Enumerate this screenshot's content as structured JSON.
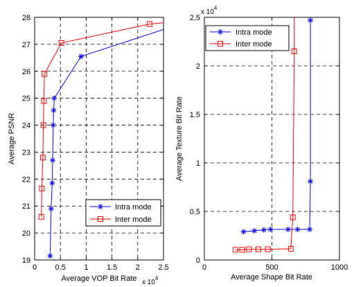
{
  "chart_data": [
    {
      "type": "line",
      "title": "",
      "xlabel": "Average VOP Bit Rate",
      "ylabel": "Average PSNR",
      "x_multiplier_label": "x 10",
      "x_multiplier_exp": "4",
      "xlim": [
        0,
        25000
      ],
      "ylim": [
        19,
        28
      ],
      "xticks": [
        0,
        5000,
        10000,
        15000,
        20000,
        25000
      ],
      "xtick_labels": [
        "0",
        "0.5",
        "1",
        "1.5",
        "2",
        "2.5"
      ],
      "yticks": [
        19,
        20,
        21,
        22,
        23,
        24,
        25,
        26,
        27,
        28
      ],
      "ytick_labels": [
        "19",
        "20",
        "21",
        "22",
        "23",
        "24",
        "25",
        "26",
        "27",
        "28"
      ],
      "grid": true,
      "legend": "bottom-right",
      "series": [
        {
          "name": "Intra mode",
          "marker": "star",
          "color": "#0000ff",
          "x": [
            3000,
            3200,
            3400,
            3500,
            3600,
            3700,
            3800,
            9000,
            25000
          ],
          "y": [
            19.15,
            20.9,
            21.85,
            22.7,
            24.0,
            24.55,
            25.0,
            26.55,
            27.55
          ]
        },
        {
          "name": "Inter mode",
          "marker": "square",
          "color": "#ff0000",
          "x": [
            1300,
            1400,
            1600,
            1700,
            1800,
            1900,
            5200,
            22300,
            25000
          ],
          "y": [
            20.6,
            21.65,
            22.8,
            24.0,
            24.9,
            25.9,
            27.05,
            27.75,
            27.8
          ]
        }
      ]
    },
    {
      "type": "line",
      "title": "",
      "xlabel": "Average Shape Bit Rate",
      "ylabel": "Average Texture Bit Rate",
      "y_multiplier_label": "x 10",
      "y_multiplier_exp": "4",
      "xlim": [
        0,
        1000
      ],
      "ylim": [
        0,
        25000
      ],
      "xticks": [
        0,
        500,
        1000
      ],
      "xtick_labels": [
        "0",
        "500",
        "1000"
      ],
      "yticks": [
        0,
        5000,
        10000,
        15000,
        20000,
        25000
      ],
      "ytick_labels": [
        "0",
        "0.5",
        "1",
        "1.5",
        "2",
        "2.5"
      ],
      "grid": true,
      "legend": "top-left",
      "series": [
        {
          "name": "Intra mode",
          "marker": "star",
          "color": "#0000ff",
          "x": [
            290,
            370,
            440,
            490,
            620,
            690,
            780,
            785,
            785
          ],
          "y": [
            2900,
            3000,
            3100,
            3150,
            3150,
            3150,
            3150,
            8100,
            24700
          ]
        },
        {
          "name": "Inter mode",
          "marker": "square",
          "color": "#ff0000",
          "x": [
            230,
            280,
            330,
            400,
            470,
            640,
            655,
            665,
            665
          ],
          "y": [
            1050,
            1050,
            1100,
            1100,
            1100,
            1150,
            4400,
            21500,
            25000
          ]
        }
      ]
    }
  ]
}
